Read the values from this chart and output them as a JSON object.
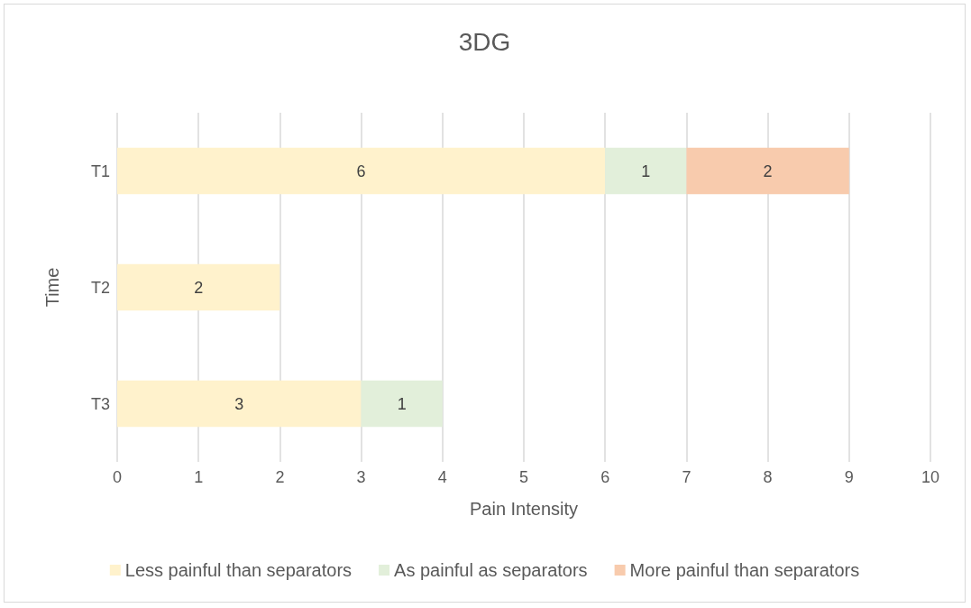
{
  "chart_data": {
    "type": "bar",
    "title": "3DG",
    "xlabel": "Pain Intensity",
    "ylabel": "Time",
    "orientation": "horizontal",
    "stacked": true,
    "categories": [
      "T1",
      "T2",
      "T3"
    ],
    "series": [
      {
        "name": "Less painful than separators",
        "color": "#fff2cc",
        "values": [
          6,
          2,
          3
        ]
      },
      {
        "name": "As painful as separators",
        "color": "#e2efda",
        "values": [
          1,
          null,
          1
        ]
      },
      {
        "name": "More painful than separators",
        "color": "#f8cbad",
        "values": [
          2,
          null,
          null
        ]
      }
    ],
    "xlim": [
      0,
      10
    ],
    "xticks": [
      0,
      1,
      2,
      3,
      4,
      5,
      6,
      7,
      8,
      9,
      10
    ],
    "grid": "x",
    "legend": "bottom",
    "data_labels": true
  }
}
